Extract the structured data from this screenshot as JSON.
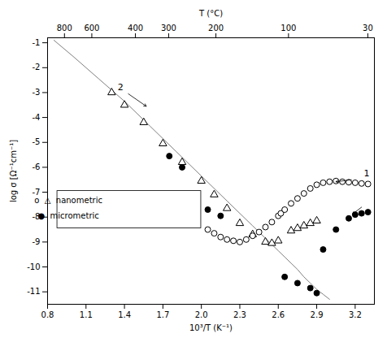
{
  "chart_data": {
    "type": "scatter",
    "xlabel": "10³/T (K⁻¹)",
    "ylabel": "log σ [Ω⁻¹cm⁻¹]",
    "x2label": "T (°C)",
    "xlim": [
      0.8,
      3.35
    ],
    "ylim": [
      -11.5,
      -0.8
    ],
    "xticks": [
      0.8,
      1.1,
      1.4,
      1.7,
      {
        "value": 2.0,
        "label": "2.0"
      },
      2.3,
      2.6,
      2.9,
      3.2
    ],
    "yticks": [
      -11,
      -10,
      -9,
      -8,
      -7,
      -6,
      -5,
      -4,
      -3,
      -2,
      -1
    ],
    "x2ticks": [
      {
        "value": 0.931836,
        "label": "800"
      },
      {
        "value": 1.145278,
        "label": "600"
      },
      {
        "value": 1.485553,
        "label": "400"
      },
      {
        "value": 1.744743,
        "label": "300"
      },
      {
        "value": 2.113495,
        "label": "200"
      },
      {
        "value": 2.679887,
        "label": "100"
      },
      {
        "value": 3.298697,
        "label": "30"
      }
    ],
    "series": [
      {
        "type": "line",
        "color": "gray",
        "x": [
          0.85,
          1.0,
          1.2,
          1.4,
          1.6,
          1.8,
          2.0,
          2.2,
          2.4,
          2.6,
          2.65,
          2.7,
          2.75,
          2.8,
          2.85,
          2.9,
          2.95,
          3.0
        ],
        "values": [
          -0.9,
          -1.55,
          -2.45,
          -3.35,
          -4.35,
          -5.35,
          -6.35,
          -7.35,
          -8.35,
          -9.35,
          -9.6,
          -9.85,
          -10.1,
          -10.4,
          -10.65,
          -10.9,
          -11.1,
          -11.3
        ]
      },
      {
        "type": "scatter",
        "marker": "open_triangle",
        "color": "black",
        "x": [
          1.3,
          1.4,
          1.55,
          1.7,
          1.85,
          2.0,
          2.1,
          2.2,
          2.3,
          2.4,
          2.5,
          2.55,
          2.6,
          2.7,
          2.75,
          2.8,
          2.85,
          2.9
        ],
        "values": [
          -3.0,
          -3.5,
          -4.2,
          -5.05,
          -5.8,
          -6.55,
          -7.1,
          -7.65,
          -8.25,
          -8.7,
          -9.0,
          -9.05,
          -8.95,
          -8.55,
          -8.45,
          -8.35,
          -8.25,
          -8.15
        ]
      },
      {
        "type": "scatter",
        "marker": "open_circle",
        "color": "black",
        "x": [
          2.05,
          2.1,
          2.15,
          2.2,
          2.25,
          2.3,
          2.35,
          2.4,
          2.45,
          2.5,
          2.55,
          2.6,
          2.62,
          2.65,
          2.7,
          2.75,
          2.8,
          2.85,
          2.9,
          2.95,
          3.0,
          3.05,
          3.1,
          3.15,
          3.2,
          3.25,
          3.3
        ],
        "values": [
          -8.5,
          -8.65,
          -8.8,
          -8.9,
          -8.95,
          -9.0,
          -8.9,
          -8.75,
          -8.6,
          -8.4,
          -8.2,
          -7.95,
          -7.85,
          -7.7,
          -7.45,
          -7.25,
          -7.05,
          -6.85,
          -6.7,
          -6.62,
          -6.58,
          -6.55,
          -6.58,
          -6.6,
          -6.62,
          -6.65,
          -6.67
        ]
      },
      {
        "type": "scatter",
        "marker": "circle",
        "color": "black",
        "x": [
          1.75,
          1.85,
          2.05,
          2.15,
          2.65,
          2.75,
          2.85,
          2.9,
          2.95,
          3.05,
          3.15,
          3.2,
          3.25,
          3.3
        ],
        "values": [
          -5.55,
          -6.0,
          -7.7,
          -7.95,
          -10.4,
          -10.65,
          -10.85,
          -11.05,
          -9.3,
          -8.5,
          -8.05,
          -7.9,
          -7.85,
          -7.8
        ]
      }
    ],
    "annotations": [
      {
        "text": "2",
        "x": 1.37,
        "y": -2.8
      },
      {
        "text": "1",
        "x": 3.29,
        "y": -6.25
      }
    ],
    "arrows": [
      {
        "x1": 1.43,
        "y1": -3.05,
        "x2": 1.57,
        "y2": -3.55
      },
      {
        "x1": 3.17,
        "y1": -6.5,
        "x2": 3.05,
        "y2": -6.58
      },
      {
        "x1": 3.25,
        "y1": -7.6,
        "x2": 3.18,
        "y2": -7.88
      }
    ],
    "legend_entries": [
      "o  △  nanometric",
      "●  micrometric"
    ]
  }
}
